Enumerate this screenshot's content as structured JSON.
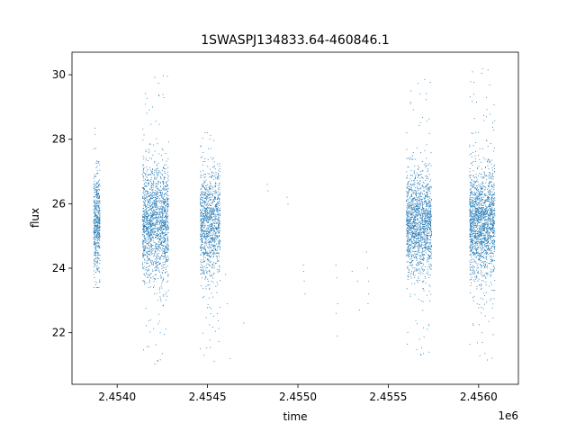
{
  "chart_data": {
    "type": "scatter",
    "title": "1SWASPJ134833.64-460846.1",
    "xlabel": "time",
    "ylabel": "flux",
    "x_offset_label": "1e6",
    "xlim": [
      2453750,
      2456220
    ],
    "ylim": [
      20.4,
      30.7
    ],
    "x_ticks": [
      2454000,
      2454500,
      2455000,
      2455500,
      2456000
    ],
    "x_tick_labels": [
      "2.4540",
      "2.4545",
      "2.4550",
      "2.4555",
      "2.4560"
    ],
    "y_ticks": [
      22,
      24,
      26,
      28,
      30
    ],
    "y_tick_labels": [
      "22",
      "24",
      "26",
      "28",
      "30"
    ],
    "grid": false,
    "marker_color": "#1f77b4",
    "clusters": [
      {
        "x_range": [
          2453870,
          2453905
        ],
        "y_center": 25.4,
        "y_spread": 0.8,
        "y_min": 23.4,
        "y_max": 28.5,
        "points": 500
      },
      {
        "x_range": [
          2454140,
          2454285
        ],
        "y_center": 25.4,
        "y_spread": 0.9,
        "y_min": 21.0,
        "y_max": 30.2,
        "points": 1600
      },
      {
        "x_range": [
          2454460,
          2454570
        ],
        "y_center": 25.4,
        "y_spread": 0.85,
        "y_min": 21.0,
        "y_max": 28.2,
        "points": 1100
      },
      {
        "x_range": [
          2455600,
          2455740
        ],
        "y_center": 25.4,
        "y_spread": 0.8,
        "y_min": 21.2,
        "y_max": 30.0,
        "points": 1500
      },
      {
        "x_range": [
          2455950,
          2456090
        ],
        "y_center": 25.4,
        "y_spread": 0.85,
        "y_min": 21.0,
        "y_max": 30.3,
        "points": 1700
      }
    ],
    "sparse_points": [
      [
        2454600,
        23.8
      ],
      [
        2454610,
        22.9
      ],
      [
        2454625,
        21.2
      ],
      [
        2454480,
        21.3
      ],
      [
        2454700,
        22.3
      ],
      [
        2454830,
        26.6
      ],
      [
        2454835,
        26.4
      ],
      [
        2454940,
        26.2
      ],
      [
        2454945,
        26.0
      ],
      [
        2455030,
        24.1
      ],
      [
        2455035,
        23.6
      ],
      [
        2455040,
        23.2
      ],
      [
        2455032,
        23.9
      ],
      [
        2455210,
        24.1
      ],
      [
        2455215,
        23.7
      ],
      [
        2455220,
        22.9
      ],
      [
        2455218,
        21.9
      ],
      [
        2455212,
        22.6
      ],
      [
        2455300,
        23.9
      ],
      [
        2455330,
        23.6
      ],
      [
        2455340,
        22.7
      ],
      [
        2455380,
        24.5
      ],
      [
        2455385,
        24.0
      ],
      [
        2455390,
        23.6
      ],
      [
        2455392,
        23.2
      ],
      [
        2455388,
        22.9
      ]
    ]
  }
}
